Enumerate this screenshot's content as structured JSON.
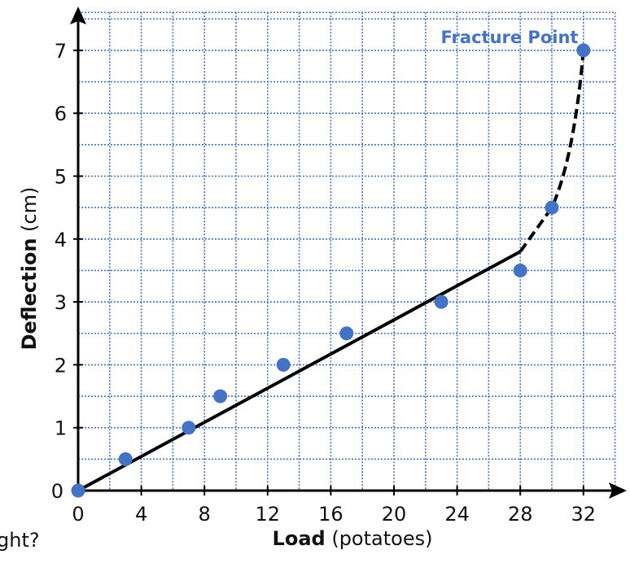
{
  "chart_data": {
    "type": "scatter",
    "xlabel_bold": "Load",
    "xlabel_unit": "(potatoes)",
    "ylabel_bold": "Deflection",
    "ylabel_unit": "(cm)",
    "xlim": [
      0,
      34
    ],
    "ylim": [
      0,
      7.5
    ],
    "x_ticks": [
      0,
      4,
      8,
      12,
      16,
      20,
      24,
      28,
      32
    ],
    "y_ticks": [
      0,
      1,
      2,
      3,
      4,
      5,
      6,
      7
    ],
    "grid": true,
    "points": [
      {
        "x": 0,
        "y": 0
      },
      {
        "x": 3,
        "y": 0.5
      },
      {
        "x": 7,
        "y": 1
      },
      {
        "x": 9,
        "y": 1.5
      },
      {
        "x": 13,
        "y": 2
      },
      {
        "x": 17,
        "y": 2.5
      },
      {
        "x": 23,
        "y": 3
      },
      {
        "x": 28,
        "y": 3.5
      },
      {
        "x": 30,
        "y": 4.5
      },
      {
        "x": 32,
        "y": 7
      }
    ],
    "fit_line_solid": {
      "x": [
        0,
        28
      ],
      "y": [
        0,
        3.8
      ]
    },
    "fit_line_dashed": {
      "x": [
        28,
        30,
        31,
        32
      ],
      "y": [
        3.8,
        4.5,
        5.3,
        7
      ]
    },
    "annotation": {
      "text": "Fracture Point",
      "x": 32,
      "y": 7,
      "color": "#4472c4"
    },
    "colors": {
      "points": "#4472c4",
      "grid": "#4472c4",
      "line": "#000000"
    }
  },
  "clipped_text": "ght?"
}
